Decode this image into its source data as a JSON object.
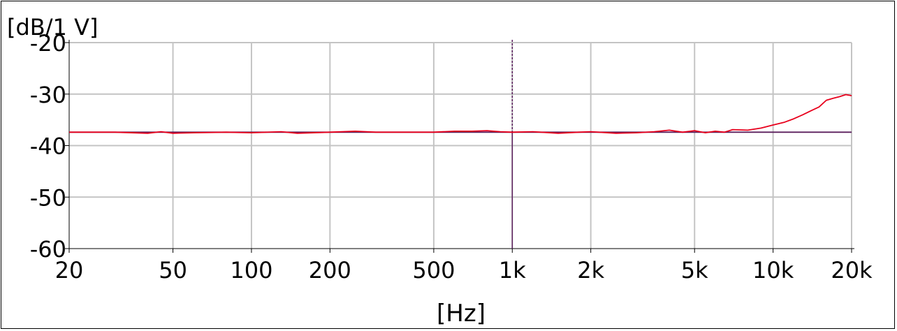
{
  "chart_data": {
    "type": "line",
    "ylabel": "[dB/1 V]",
    "xlabel": "[Hz]",
    "x_scale": "log",
    "xlim": [
      20,
      20000
    ],
    "ylim": [
      -60,
      -20
    ],
    "grid": true,
    "x_ticks": [
      {
        "value": 20,
        "label": "20"
      },
      {
        "value": 50,
        "label": "50"
      },
      {
        "value": 100,
        "label": "100"
      },
      {
        "value": 200,
        "label": "200"
      },
      {
        "value": 500,
        "label": "500"
      },
      {
        "value": 1000,
        "label": "1k"
      },
      {
        "value": 2000,
        "label": "2k"
      },
      {
        "value": 5000,
        "label": "5k"
      },
      {
        "value": 10000,
        "label": "10k"
      },
      {
        "value": 20000,
        "label": "20k"
      }
    ],
    "y_ticks": [
      {
        "value": -20,
        "label": "-20"
      },
      {
        "value": -30,
        "label": "-30"
      },
      {
        "value": -40,
        "label": "-40"
      },
      {
        "value": -50,
        "label": "-50"
      },
      {
        "value": -60,
        "label": "-60"
      }
    ],
    "cursor": {
      "x": 1000,
      "y": -37.4,
      "color": "#5a1e5c"
    },
    "series": [
      {
        "color": "#e8001c",
        "x": [
          20,
          30,
          40,
          45,
          50,
          60,
          80,
          100,
          130,
          150,
          200,
          250,
          300,
          500,
          600,
          700,
          800,
          900,
          1000,
          1200,
          1500,
          1800,
          2000,
          2500,
          3000,
          3500,
          4000,
          4500,
          5000,
          5500,
          6000,
          6500,
          7000,
          8000,
          9000,
          10000,
          11000,
          12000,
          13000,
          14000,
          15000,
          16000,
          17000,
          18000,
          19000,
          20000
        ],
        "y": [
          -37.4,
          -37.4,
          -37.6,
          -37.3,
          -37.6,
          -37.5,
          -37.4,
          -37.5,
          -37.3,
          -37.6,
          -37.4,
          -37.2,
          -37.4,
          -37.4,
          -37.2,
          -37.2,
          -37.1,
          -37.3,
          -37.4,
          -37.3,
          -37.6,
          -37.4,
          -37.3,
          -37.6,
          -37.5,
          -37.3,
          -37.0,
          -37.4,
          -37.1,
          -37.5,
          -37.2,
          -37.4,
          -36.9,
          -37.0,
          -36.6,
          -36.0,
          -35.5,
          -34.8,
          -34.0,
          -33.2,
          -32.5,
          -31.2,
          -30.8,
          -30.5,
          -30.1,
          -30.3
        ]
      }
    ]
  }
}
